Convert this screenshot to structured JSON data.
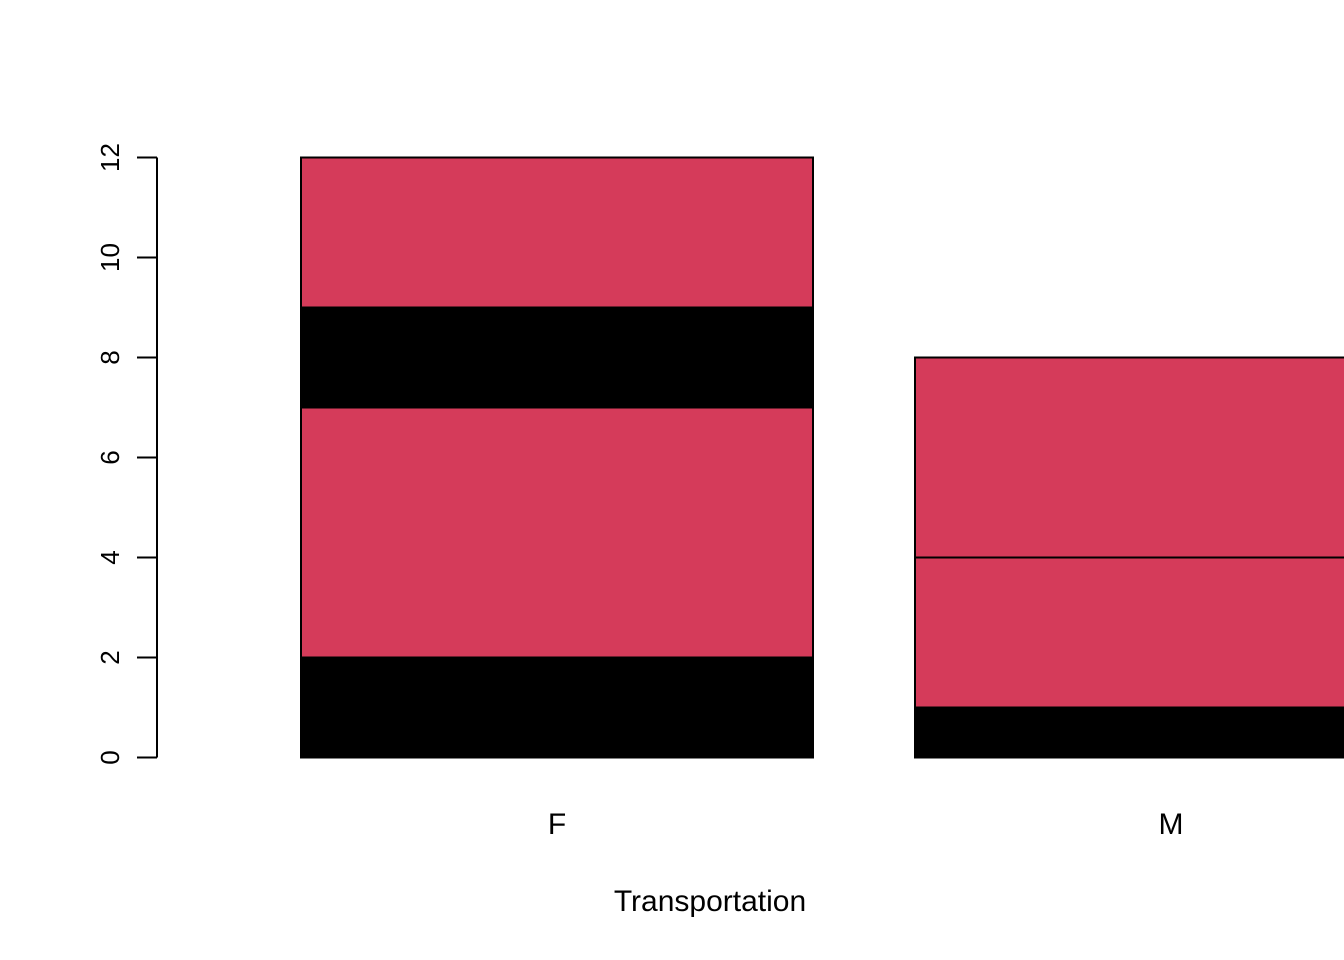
{
  "chart_data": {
    "type": "bar",
    "stacked": true,
    "title": "",
    "xlabel": "Transportation",
    "ylabel": "",
    "ylim": [
      0,
      12
    ],
    "yticks": [
      0,
      2,
      4,
      6,
      8,
      10,
      12
    ],
    "categories": [
      "F",
      "M"
    ],
    "bars": [
      {
        "category": "F",
        "segments": [
          {
            "from": 0,
            "to": 2,
            "color": "#000000"
          },
          {
            "from": 2,
            "to": 7,
            "color": "#D53B5A"
          },
          {
            "from": 7,
            "to": 9,
            "color": "#000000"
          },
          {
            "from": 9,
            "to": 12,
            "color": "#D53B5A"
          }
        ]
      },
      {
        "category": "M",
        "segments": [
          {
            "from": 0,
            "to": 1,
            "color": "#000000"
          },
          {
            "from": 1,
            "to": 4,
            "color": "#D53B5A"
          },
          {
            "from": 4,
            "to": 8,
            "color": "#D53B5A"
          }
        ]
      }
    ],
    "colors": {
      "black": "#000000",
      "red": "#D53B5A"
    },
    "grid": false,
    "legend": "none"
  }
}
